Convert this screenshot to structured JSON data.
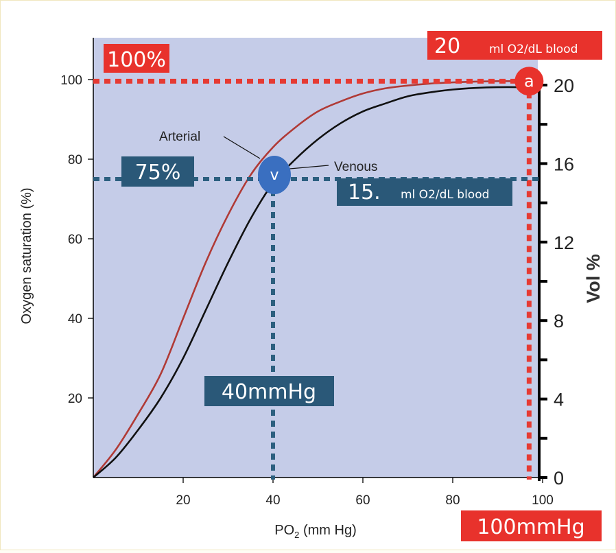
{
  "chart_data": {
    "type": "line",
    "xlabel_main": "PO",
    "xlabel_sub": "2",
    "xlabel_unit": " (mm Hg)",
    "ylabel": "Oxygen saturation (%)",
    "y2label": "Vol %",
    "xlim": [
      0,
      100
    ],
    "ylim": [
      0,
      100
    ],
    "y2lim": [
      0,
      20
    ],
    "xticks": [
      20,
      40,
      60,
      80,
      100
    ],
    "yticks": [
      20,
      40,
      60,
      80,
      100
    ],
    "y2ticks": [
      0,
      4,
      8,
      12,
      16,
      20
    ],
    "series": [
      {
        "name": "Arterial",
        "color": "#b03a36",
        "x": [
          0,
          5,
          10,
          15,
          20,
          25,
          30,
          35,
          40,
          45,
          50,
          55,
          60,
          65,
          70,
          75,
          80,
          85,
          90,
          95,
          98
        ],
        "y": [
          0,
          7,
          16,
          26,
          40,
          54,
          66,
          76,
          83,
          88,
          92,
          94.5,
          96.5,
          97.8,
          98.5,
          99,
          99.3,
          99.5,
          99.6,
          99.6,
          99.6
        ]
      },
      {
        "name": "Venous",
        "color": "#111111",
        "x": [
          0,
          5,
          10,
          15,
          20,
          25,
          30,
          35,
          40,
          45,
          50,
          55,
          60,
          65,
          70,
          75,
          80,
          85,
          90,
          95,
          98
        ],
        "y": [
          0,
          5,
          12,
          20,
          30,
          42,
          54,
          65,
          74,
          80,
          85,
          89,
          92,
          94,
          95.8,
          96.8,
          97.5,
          97.9,
          98.1,
          98.1,
          98
        ]
      }
    ],
    "annotations": {
      "arterial_label": "Arterial",
      "venous_label": "Venous",
      "point_a": {
        "label": "a",
        "x": 97,
        "y": 99.6
      },
      "point_v": {
        "label": "v",
        "x": 40,
        "y": 75
      },
      "sat_100": "100%",
      "sat_75": "75%",
      "vol_20_num": "20",
      "vol_20_unit": "ml O2/dL blood",
      "vol_15_num": "15.",
      "vol_15_unit": "ml O2/dL blood",
      "po2_40": "40mmHg",
      "po2_100": "100mmHg"
    },
    "colors": {
      "plot_bg": "#c5cce8",
      "red_callout": "#e8322c",
      "blue_callout": "#2a5878",
      "dash_red": "#e63a33",
      "dash_blue": "#2c5f7f",
      "v_marker": "#3a6fc0"
    }
  }
}
